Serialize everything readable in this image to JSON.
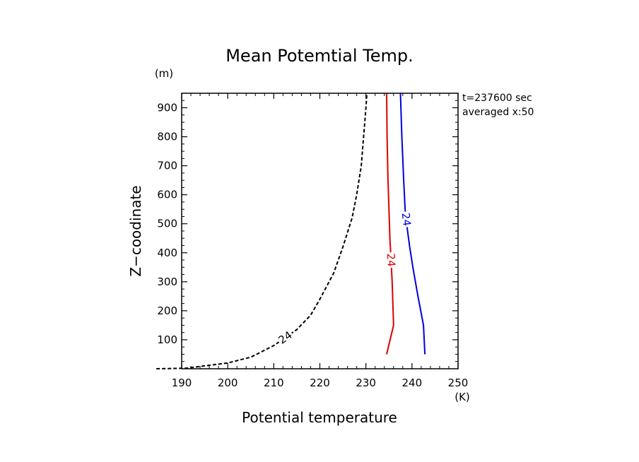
{
  "chart_data": {
    "type": "line",
    "title": "Mean Potemtial Temp.",
    "xlabel": "Potential temperature",
    "ylabel": "Z−coodinate",
    "x_unit": "(K)",
    "y_unit": "(m)",
    "info": [
      "t=237600 sec",
      "averaged  x:50"
    ],
    "xlim": [
      190,
      250
    ],
    "ylim": [
      0,
      950
    ],
    "xticks": [
      190,
      200,
      210,
      220,
      230,
      240,
      250
    ],
    "yticks": [
      100,
      200,
      300,
      400,
      500,
      600,
      700,
      800,
      900
    ],
    "grid": false,
    "series": [
      {
        "label": "24",
        "color": "#000000",
        "dashed": true,
        "label_at": 6,
        "points": [
          [
            184.5,
            0
          ],
          [
            191,
            2
          ],
          [
            195,
            10
          ],
          [
            200,
            20
          ],
          [
            205,
            40
          ],
          [
            210,
            80
          ],
          [
            215,
            135
          ],
          [
            218,
            185
          ],
          [
            220,
            240
          ],
          [
            223,
            330
          ],
          [
            225,
            420
          ],
          [
            227,
            520
          ],
          [
            228,
            600
          ],
          [
            229,
            700
          ],
          [
            229.5,
            800
          ],
          [
            230,
            900
          ],
          [
            230.2,
            950
          ]
        ]
      },
      {
        "label": "24",
        "color": "#dd0000",
        "dashed": false,
        "label_at": 3,
        "points": [
          [
            234.5,
            50
          ],
          [
            236,
            150
          ],
          [
            235.7,
            300
          ],
          [
            235.2,
            450
          ],
          [
            235,
            550
          ],
          [
            234.8,
            650
          ],
          [
            234.6,
            800
          ],
          [
            234.5,
            950
          ]
        ]
      },
      {
        "label": "24",
        "color": "#0000dd",
        "dashed": false,
        "label_at": 6,
        "points": [
          [
            242.8,
            50
          ],
          [
            242.5,
            150
          ],
          [
            241.3,
            250
          ],
          [
            240.2,
            350
          ],
          [
            239.5,
            420
          ],
          [
            239,
            480
          ],
          [
            238.5,
            550
          ],
          [
            238.2,
            650
          ],
          [
            237.8,
            800
          ],
          [
            237.5,
            950
          ]
        ]
      }
    ]
  }
}
